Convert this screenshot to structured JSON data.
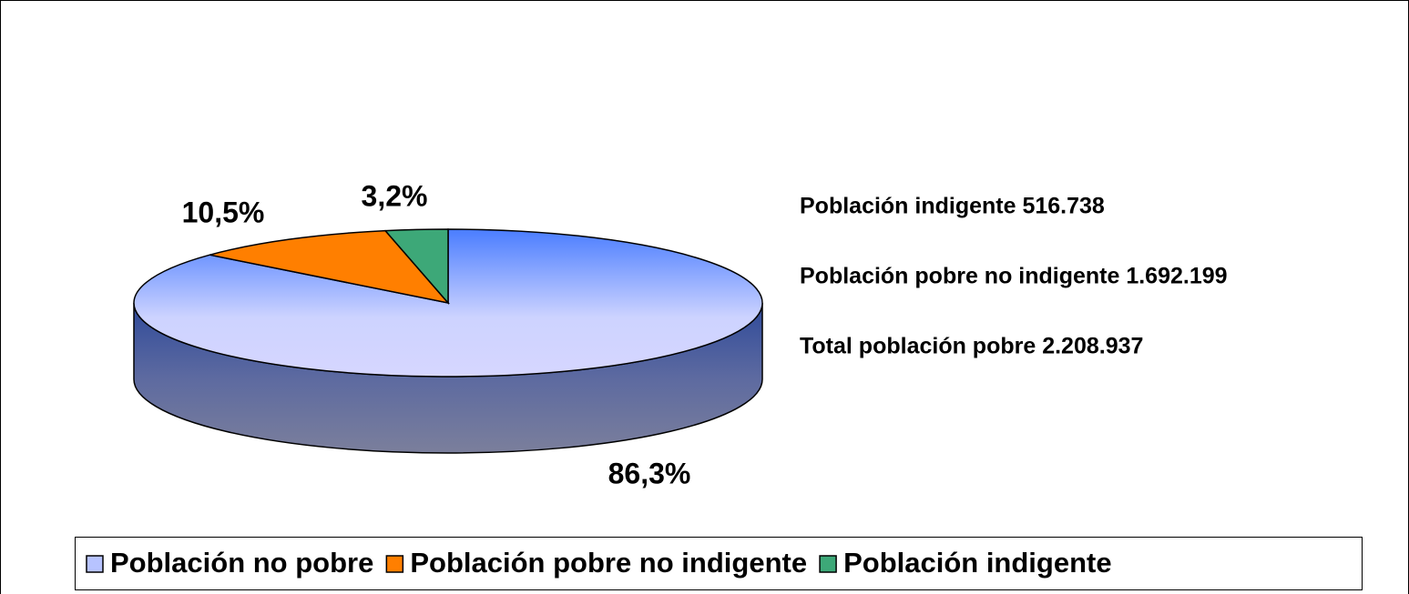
{
  "chart_data": {
    "type": "pie",
    "categories": [
      "Población no pobre",
      "Población pobre no indigente",
      "Población indigente"
    ],
    "values": [
      86.3,
      10.5,
      3.2
    ],
    "value_labels": [
      "86,3%",
      "10,5%",
      "3,2%"
    ],
    "colors": [
      "#6f8cff",
      "#ff7f00",
      "#3da878"
    ],
    "annotations": [
      "Población indigente 516.738",
      "Población pobre no indigente 1.692.199",
      "Total población pobre 2.208.937"
    ],
    "legend": "bottom"
  }
}
